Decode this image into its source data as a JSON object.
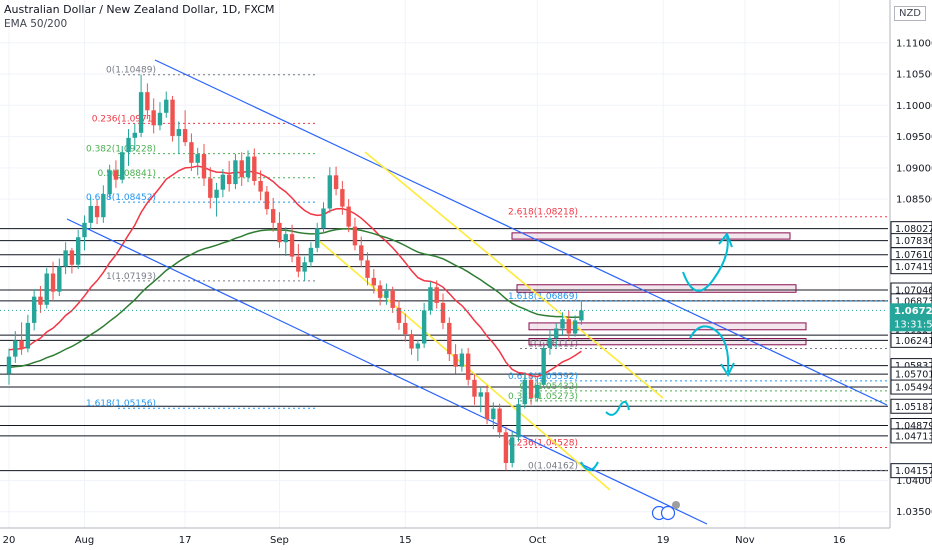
{
  "header": {
    "title": "Australian Dollar / New Zealand Dollar, 1D, FXCM",
    "indicator": "EMA 50/200",
    "currency": "NZD"
  },
  "chart_data": {
    "type": "candlestick",
    "ylim": [
      1.034,
      1.113
    ],
    "y_ticks": [
      1.11,
      1.105,
      1.1,
      1.095,
      1.09,
      1.085,
      1.04,
      1.035
    ],
    "level_labels": [
      1.08027,
      1.07836,
      1.0761,
      1.07419,
      1.07046,
      1.06873,
      1.06324,
      1.06241,
      1.05837,
      1.05701,
      1.05494,
      1.05187,
      1.04879,
      1.04713,
      1.04157
    ],
    "last_price": "1.06721",
    "countdown": "13:31:50",
    "x_ticks": [
      {
        "label": "20",
        "day": 0
      },
      {
        "label": "Aug",
        "day": 12
      },
      {
        "label": "17",
        "day": 28
      },
      {
        "label": "Sep",
        "day": 43
      },
      {
        "label": "15",
        "day": 63
      },
      {
        "label": "Oct",
        "day": 84
      },
      {
        "label": "19",
        "day": 104
      },
      {
        "label": "Nov",
        "day": 117
      },
      {
        "label": "16",
        "day": 132
      },
      {
        "label": "Dec",
        "day": 150
      },
      {
        "label": "14",
        "day": 160
      },
      {
        "label": "2021",
        "day": 183
      },
      {
        "label": "18",
        "day": 197
      },
      {
        "label": "Feb",
        "day": 212
      }
    ],
    "fib_upper": [
      {
        "text": "0(1.10489)",
        "value": 1.10489,
        "color": "#787b86"
      },
      {
        "text": "0.236(1.0971)",
        "value": 1.0971,
        "color": "#f23645"
      },
      {
        "text": "0.382(1.09228)",
        "value": 1.09228,
        "color": "#4caf50"
      },
      {
        "text": "0.5(1.08841)",
        "value": 1.08841,
        "color": "#4caf50"
      },
      {
        "text": "0.618(1.08452)",
        "value": 1.08452,
        "color": "#2196f3"
      },
      {
        "text": "1(1.07193)",
        "value": 1.07193,
        "color": "#787b86"
      },
      {
        "text": "1.618(1.05156)",
        "value": 1.05156,
        "color": "#2196f3"
      }
    ],
    "fib_lower": [
      {
        "text": "2.618(1.08218)",
        "value": 1.08218,
        "color": "#f23645"
      },
      {
        "text": "1.618(1.06869)",
        "value": 1.06869,
        "color": "#2196f3"
      },
      {
        "text": "1(1.06111)",
        "value": 1.06111,
        "color": "#787b86"
      },
      {
        "text": "0.618(1.05592)",
        "value": 1.05592,
        "color": "#2196f3"
      },
      {
        "text": "0.5(1.05432)",
        "value": 1.05432,
        "color": "#4caf50"
      },
      {
        "text": "0.382(1.05273)",
        "value": 1.05273,
        "color": "#4caf50"
      },
      {
        "text": "0.236(1.04528)",
        "value": 1.04528,
        "color": "#f23645"
      },
      {
        "text": "0(1.04162)",
        "value": 1.04162,
        "color": "#787b86"
      }
    ],
    "colors": {
      "up": "#26a69a",
      "down": "#ef5350",
      "ema50": "#f23645",
      "ema200": "#2e7d32",
      "channel": "#2962ff",
      "yellow_channel": "#ffeb3b",
      "arrows": "#00bcd4"
    },
    "candles": [
      [
        1.0571,
        1.0611,
        1.0553,
        1.0598
      ],
      [
        1.0598,
        1.0639,
        1.0588,
        1.0624
      ],
      [
        1.0624,
        1.0653,
        1.0601,
        1.0611
      ],
      [
        1.0611,
        1.0665,
        1.0605,
        1.0652
      ],
      [
        1.0652,
        1.0706,
        1.064,
        1.0694
      ],
      [
        1.0694,
        1.0711,
        1.0668,
        1.0681
      ],
      [
        1.0681,
        1.074,
        1.0675,
        1.0731
      ],
      [
        1.0731,
        1.075,
        1.0689,
        1.0702
      ],
      [
        1.0702,
        1.0755,
        1.0695,
        1.0742
      ],
      [
        1.0742,
        1.0781,
        1.073,
        1.0768
      ],
      [
        1.0768,
        1.0772,
        1.0731,
        1.0745
      ],
      [
        1.0745,
        1.0801,
        1.0738,
        1.0789
      ],
      [
        1.0789,
        1.0824,
        1.0768,
        1.0812
      ],
      [
        1.0812,
        1.0853,
        1.0802,
        1.0839
      ],
      [
        1.0839,
        1.0849,
        1.081,
        1.0821
      ],
      [
        1.0821,
        1.0872,
        1.0812,
        1.0858
      ],
      [
        1.0858,
        1.0905,
        1.0851,
        1.0896
      ],
      [
        1.0896,
        1.0912,
        1.0868,
        1.0881
      ],
      [
        1.0881,
        1.0935,
        1.0875,
        1.0925
      ],
      [
        1.0925,
        1.0962,
        1.0903,
        1.0948
      ],
      [
        1.0948,
        1.097,
        1.0928,
        1.0956
      ],
      [
        1.0956,
        1.1049,
        1.0949,
        1.1021
      ],
      [
        1.1021,
        1.1035,
        1.0978,
        1.0992
      ],
      [
        1.0992,
        1.1011,
        1.0955,
        1.0968
      ],
      [
        1.0968,
        1.1005,
        1.096,
        1.0988
      ],
      [
        1.0988,
        1.1022,
        1.098,
        1.1009
      ],
      [
        1.1009,
        1.1015,
        1.0942,
        1.0951
      ],
      [
        1.0951,
        1.0974,
        1.0922,
        1.0962
      ],
      [
        1.0962,
        1.0992,
        1.0935,
        1.0941
      ],
      [
        1.0941,
        1.0955,
        1.0895,
        1.0908
      ],
      [
        1.0908,
        1.0932,
        1.0888,
        1.0922
      ],
      [
        1.0922,
        1.0938,
        1.0871,
        1.0883
      ],
      [
        1.0883,
        1.0901,
        1.0835,
        1.0852
      ],
      [
        1.0852,
        1.0876,
        1.0822,
        1.0865
      ],
      [
        1.0865,
        1.0898,
        1.0853,
        1.0889
      ],
      [
        1.0889,
        1.0911,
        1.0862,
        1.0874
      ],
      [
        1.0874,
        1.0922,
        1.0866,
        1.0912
      ],
      [
        1.0912,
        1.0925,
        1.0871,
        1.0885
      ],
      [
        1.0885,
        1.0928,
        1.0877,
        1.0918
      ],
      [
        1.0918,
        1.0931,
        1.0872,
        1.0879
      ],
      [
        1.0879,
        1.0896,
        1.0848,
        1.0862
      ],
      [
        1.0862,
        1.0871,
        1.0825,
        1.0834
      ],
      [
        1.0834,
        1.0852,
        1.0798,
        1.0812
      ],
      [
        1.0812,
        1.0829,
        1.0772,
        1.0781
      ],
      [
        1.0781,
        1.0805,
        1.0759,
        1.0794
      ],
      [
        1.0794,
        1.0809,
        1.0749,
        1.0758
      ],
      [
        1.0758,
        1.0778,
        1.0725,
        1.0734
      ],
      [
        1.0734,
        1.0758,
        1.0719,
        1.0749
      ],
      [
        1.0749,
        1.0781,
        1.0741,
        1.0772
      ],
      [
        1.0772,
        1.0812,
        1.0765,
        1.0803
      ],
      [
        1.0803,
        1.0845,
        1.0795,
        1.0835
      ],
      [
        1.0835,
        1.0901,
        1.0828,
        1.0888
      ],
      [
        1.0888,
        1.0902,
        1.0856,
        1.0866
      ],
      [
        1.0866,
        1.0879,
        1.0825,
        1.0838
      ],
      [
        1.0838,
        1.085,
        1.0797,
        1.0806
      ],
      [
        1.0806,
        1.082,
        1.0768,
        1.0776
      ],
      [
        1.0776,
        1.079,
        1.0741,
        1.0752
      ],
      [
        1.0752,
        1.0765,
        1.0712,
        1.0724
      ],
      [
        1.0724,
        1.0738,
        1.0699,
        1.0712
      ],
      [
        1.0712,
        1.072,
        1.068,
        1.0692
      ],
      [
        1.0692,
        1.0715,
        1.0681,
        1.0703
      ],
      [
        1.0703,
        1.071,
        1.0668,
        1.0676
      ],
      [
        1.0676,
        1.0688,
        1.0641,
        1.0652
      ],
      [
        1.0652,
        1.0667,
        1.0622,
        1.0634
      ],
      [
        1.0634,
        1.0641,
        1.0601,
        1.0611
      ],
      [
        1.0611,
        1.0625,
        1.0591,
        1.0619
      ],
      [
        1.0619,
        1.0684,
        1.0612,
        1.0672
      ],
      [
        1.0672,
        1.0718,
        1.0665,
        1.0709
      ],
      [
        1.0709,
        1.072,
        1.0675,
        1.0684
      ],
      [
        1.0684,
        1.0699,
        1.0642,
        1.0652
      ],
      [
        1.0652,
        1.0661,
        1.0591,
        1.0602
      ],
      [
        1.0602,
        1.0618,
        1.0571,
        1.0582
      ],
      [
        1.0582,
        1.0611,
        1.0574,
        1.0603
      ],
      [
        1.0603,
        1.0612,
        1.0552,
        1.0561
      ],
      [
        1.0561,
        1.057,
        1.0521,
        1.0534
      ],
      [
        1.0534,
        1.0548,
        1.0509,
        1.0541
      ],
      [
        1.0541,
        1.0552,
        1.049,
        1.0498
      ],
      [
        1.0498,
        1.0525,
        1.0482,
        1.0515
      ],
      [
        1.0515,
        1.0523,
        1.0468,
        1.0477
      ],
      [
        1.0477,
        1.0486,
        1.0416,
        1.0428
      ],
      [
        1.0428,
        1.0478,
        1.0421,
        1.0469
      ],
      [
        1.0469,
        1.0531,
        1.0462,
        1.0522
      ],
      [
        1.0522,
        1.0572,
        1.0515,
        1.0561
      ],
      [
        1.0561,
        1.0568,
        1.0521,
        1.0532
      ],
      [
        1.0532,
        1.0565,
        1.0526,
        1.0553
      ],
      [
        1.0553,
        1.0621,
        1.0548,
        1.0612
      ],
      [
        1.0612,
        1.0641,
        1.0601,
        1.0628
      ],
      [
        1.0628,
        1.0652,
        1.0612,
        1.0643
      ],
      [
        1.0643,
        1.0669,
        1.0633,
        1.0658
      ],
      [
        1.0658,
        1.0672,
        1.0625,
        1.0635
      ],
      [
        1.0635,
        1.0664,
        1.063,
        1.0656
      ],
      [
        1.0656,
        1.0686,
        1.0649,
        1.0672
      ]
    ]
  }
}
